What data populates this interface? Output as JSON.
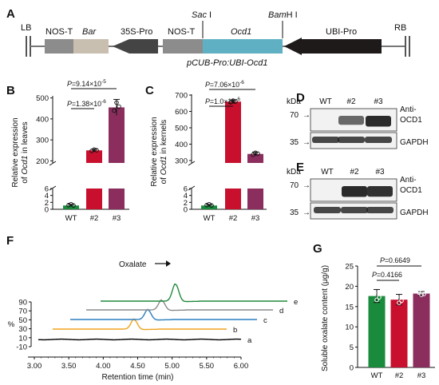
{
  "panels": {
    "A": "A",
    "B": "B",
    "C": "C",
    "D": "D",
    "E": "E",
    "F": "F",
    "G": "G"
  },
  "construct": {
    "lb": "LB",
    "rb": "RB",
    "nos_t_1": "NOS-T",
    "bar": "Bar",
    "pro_35s": "35S-Pro",
    "nos_t_2": "NOS-T",
    "ocd1": "Ocd1",
    "ubi_pro": "UBI-Pro",
    "sac": "Sac",
    "sac_num": "I",
    "bam": "Bam",
    "bam_num": "H I",
    "plasmid": "pCUB-Pro:UBI-Ocd1",
    "colors": {
      "nos": "#8c8c8c",
      "bar": "#c9bfb0",
      "pro35s": "#444444",
      "ocd1": "#5fb0c3",
      "ubi": "#1f1a1a"
    }
  },
  "chart_data": [
    {
      "panel": "B",
      "type": "bar",
      "categories": [
        "WT",
        "#2",
        "#3"
      ],
      "values": [
        1.1,
        250,
        455
      ],
      "errors": [
        0.35,
        6,
        38
      ],
      "colors": [
        "#1a8a3c",
        "#c8102e",
        "#8b2e5e"
      ],
      "ylabel_prefix": "Relative expression",
      "ylabel_of": "of ",
      "ylabel_gene": "Ocd1",
      "ylabel_rest": " in leaves",
      "y_lower_ticks": [
        "0",
        "2",
        "4",
        "6"
      ],
      "y_upper_ticks": [
        "200",
        "300",
        "400",
        "500"
      ],
      "broken_axis": true,
      "stats": [
        {
          "p_label": "P",
          "eq": "=1.38×10",
          "exp": "-6"
        },
        {
          "p_label": "P",
          "eq": "=9.14×10",
          "exp": "-5"
        }
      ]
    },
    {
      "panel": "C",
      "type": "bar",
      "categories": [
        "WT",
        "#2",
        "#3"
      ],
      "values": [
        1.1,
        660,
        340
      ],
      "errors": [
        0.3,
        10,
        12
      ],
      "colors": [
        "#1a8a3c",
        "#c8102e",
        "#8b2e5e"
      ],
      "ylabel_prefix": "Relative expression",
      "ylabel_of": "of ",
      "ylabel_gene": "Ocd1",
      "ylabel_rest": " in kernels",
      "y_lower_ticks": [
        "0",
        "2",
        "4",
        "6"
      ],
      "y_upper_ticks": [
        "300",
        "400",
        "500",
        "600",
        "700"
      ],
      "broken_axis": true,
      "stats": [
        {
          "p_label": "P",
          "eq": "=1.0×10",
          "exp": "-6"
        },
        {
          "p_label": "P",
          "eq": "=7.06×10",
          "exp": "-6"
        }
      ]
    },
    {
      "panel": "F",
      "type": "line",
      "xlabel": "Retention time (min)",
      "x_ticks": [
        "3.00",
        "3.50",
        "4.00",
        "4.50",
        "5.00",
        "5.50",
        "6.00"
      ],
      "y_ticks": [
        "90",
        "70",
        "50",
        "30",
        "10",
        "-10"
      ],
      "ylabel": "%",
      "xlim": [
        3.0,
        6.0
      ],
      "annotation": "Oxalate",
      "series": [
        {
          "name": "a",
          "color": "#000000",
          "peak_x": 4.5,
          "peak_h": 0
        },
        {
          "name": "b",
          "color": "#f0a21d",
          "peak_x": 4.45,
          "peak_h": 22
        },
        {
          "name": "c",
          "color": "#2b7fbf",
          "peak_x": 4.65,
          "peak_h": 22
        },
        {
          "name": "d",
          "color": "#8a8a8a",
          "peak_x": 4.85,
          "peak_h": 22
        },
        {
          "name": "e",
          "color": "#22893e",
          "peak_x": 5.05,
          "peak_h": 38
        }
      ]
    },
    {
      "panel": "G",
      "type": "bar",
      "categories": [
        "WT",
        "#2",
        "#3"
      ],
      "values": [
        17.6,
        16.7,
        18.2
      ],
      "errors": [
        1.6,
        1.3,
        0.5
      ],
      "colors": [
        "#1a8a3c",
        "#c8102e",
        "#8b2e5e"
      ],
      "ylabel": "Soluble oxalate content (μg/g)",
      "ylim": [
        0,
        25
      ],
      "y_ticks": [
        "0",
        "5",
        "10",
        "15",
        "20",
        "25"
      ],
      "stats": [
        {
          "p_label": "P",
          "eq": "=0.4166",
          "exp": ""
        },
        {
          "p_label": "P",
          "eq": "=0.6649",
          "exp": ""
        }
      ]
    }
  ],
  "western_d": {
    "kda": "kDa",
    "lanes": [
      "WT",
      "#2",
      "#3"
    ],
    "markers": [
      "70",
      "35"
    ],
    "anti1": "Anti-",
    "anti2": "OCD1",
    "gapdh": "GAPDH",
    "ocd1_levels": [
      0.0,
      0.45,
      0.9
    ],
    "gapdh_levels": [
      0.85,
      0.85,
      0.85
    ]
  },
  "western_e": {
    "kda": "kDa",
    "lanes": [
      "WT",
      "#2",
      "#3"
    ],
    "markers": [
      "70",
      "35"
    ],
    "anti1": "Anti-",
    "anti2": "OCD1",
    "gapdh": "GAPDH",
    "ocd1_levels": [
      0.0,
      0.9,
      0.85
    ],
    "gapdh_levels": [
      0.85,
      0.85,
      0.85
    ]
  }
}
